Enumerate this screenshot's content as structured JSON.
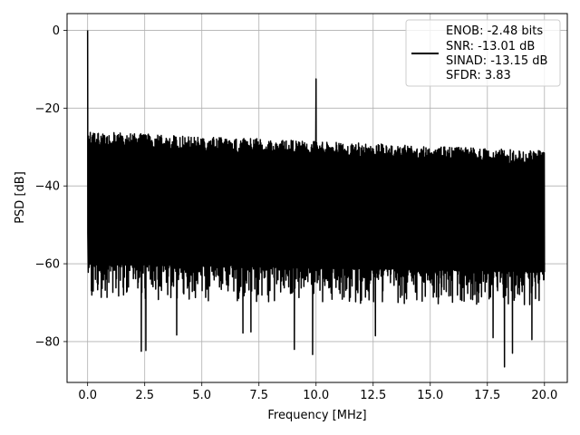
{
  "chart_data": {
    "type": "line",
    "title": "",
    "xlabel": "Frequency [MHz]",
    "ylabel": "PSD [dB]",
    "xlim": [
      -0.9,
      21.0
    ],
    "ylim": [
      -90.5,
      4.3
    ],
    "x_ticks": [
      0.0,
      2.5,
      5.0,
      7.5,
      10.0,
      12.5,
      15.0,
      17.5,
      20.0
    ],
    "x_tick_labels": [
      "0.0",
      "2.5",
      "5.0",
      "7.5",
      "10.0",
      "12.5",
      "15.0",
      "17.5",
      "20.0"
    ],
    "y_ticks": [
      0,
      -20,
      -40,
      -60,
      -80
    ],
    "y_tick_labels": [
      "0",
      "−20",
      "−40",
      "−60",
      "−80"
    ],
    "grid": true,
    "legend_position": "top-right",
    "series": [
      {
        "name": "",
        "color": "#000000",
        "x_range": [
          0.0,
          20.0
        ],
        "num_points": 2048,
        "envelope_upper_db": [
          [
            0.0,
            -26
          ],
          [
            20.0,
            -31
          ]
        ],
        "envelope_lower_typical_db": [
          [
            0.0,
            -60
          ],
          [
            20.0,
            -62
          ]
        ],
        "peaks": [
          {
            "x": 0.0,
            "y": 0.0
          },
          {
            "x": 10.0,
            "y": -12.5
          }
        ],
        "deep_notches": [
          {
            "x": 2.35,
            "y": -82.5
          },
          {
            "x": 2.55,
            "y": -82.3
          },
          {
            "x": 3.9,
            "y": -78.3
          },
          {
            "x": 6.8,
            "y": -77.8
          },
          {
            "x": 7.15,
            "y": -77.5
          },
          {
            "x": 9.05,
            "y": -82
          },
          {
            "x": 9.85,
            "y": -83.3
          },
          {
            "x": 12.6,
            "y": -78.5
          },
          {
            "x": 17.75,
            "y": -79
          },
          {
            "x": 18.25,
            "y": -86.5
          },
          {
            "x": 18.6,
            "y": -83
          },
          {
            "x": 19.45,
            "y": -79.5
          }
        ]
      }
    ],
    "legend_lines": [
      "ENOB: -2.48 bits",
      "SNR: -13.01 dB",
      "SINAD: -13.15 dB",
      "SFDR: 3.83"
    ]
  }
}
